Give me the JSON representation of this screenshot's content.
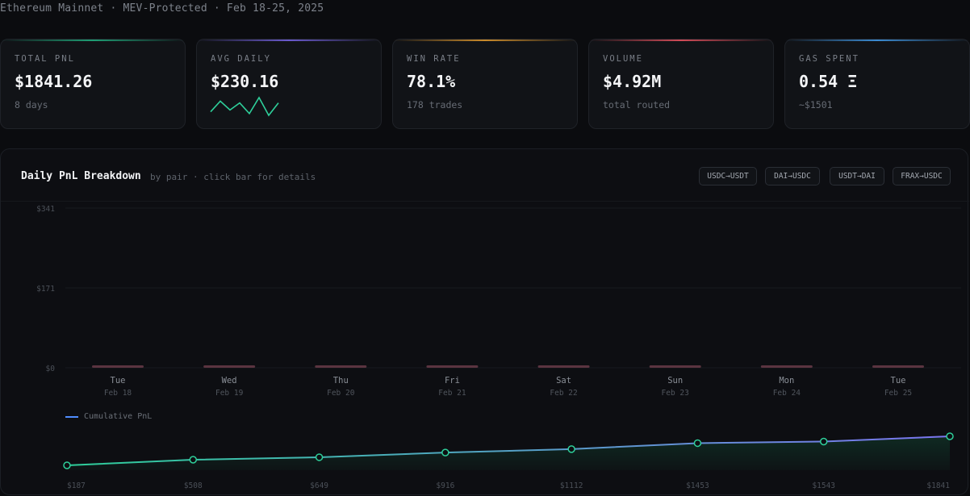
{
  "header": {
    "subtitle": "Ethereum Mainnet · MEV-Protected · Feb 18-25, 2025"
  },
  "cards": [
    {
      "label": "TOTAL PNL",
      "value": "$1841.26",
      "sub": "8 days",
      "accent": "#1f9d74"
    },
    {
      "label": "AVG DAILY",
      "value": "$230.16",
      "sub": "",
      "accent": "#6a5acd",
      "sparkline": [
        3,
        9,
        4,
        8,
        2,
        11,
        1,
        8
      ]
    },
    {
      "label": "WIN RATE",
      "value": "78.1%",
      "sub": "178 trades",
      "accent": "#c98a2b"
    },
    {
      "label": "VOLUME",
      "value": "$4.92M",
      "sub": "total routed",
      "accent": "#d04b57"
    },
    {
      "label": "GAS SPENT",
      "value": "0.54 Ξ",
      "sub": "~$1501",
      "accent": "#3b8ad0"
    }
  ],
  "panel": {
    "title": "Daily PnL Breakdown",
    "hint": "by pair · click bar for details",
    "pairs": [
      "USDC→USDT",
      "DAI→USDC",
      "USDT→DAI",
      "FRAX→USDC"
    ]
  },
  "colors": {
    "bar_stub": "#5a3440",
    "grid": "#181a20",
    "line_start": "#2ecf9a",
    "line_end": "#7b74f0",
    "area": "#0f2a22"
  },
  "chart_data": [
    {
      "type": "bar",
      "title": "Daily PnL Breakdown",
      "categories": [
        "Tue",
        "Wed",
        "Thu",
        "Fri",
        "Sat",
        "Sun",
        "Mon",
        "Tue"
      ],
      "dates": [
        "Feb 18",
        "Feb 19",
        "Feb 20",
        "Feb 21",
        "Feb 22",
        "Feb 23",
        "Feb 24",
        "Feb 25"
      ],
      "values": [
        0,
        0,
        0,
        0,
        0,
        0,
        0,
        0
      ],
      "y_ticks": [
        "$341",
        "$171",
        "$0"
      ],
      "ylim": [
        0,
        341
      ],
      "grid": true
    },
    {
      "type": "line",
      "series": [
        {
          "name": "Cumulative PnL",
          "values": [
            187,
            508,
            649,
            916,
            1112,
            1453,
            1543,
            1841
          ]
        }
      ],
      "point_labels": [
        "$187",
        "$508",
        "$649",
        "$916",
        "$1112",
        "$1453",
        "$1543",
        "$1841"
      ],
      "ylim": [
        0,
        2000
      ],
      "legend": "top-left"
    }
  ]
}
